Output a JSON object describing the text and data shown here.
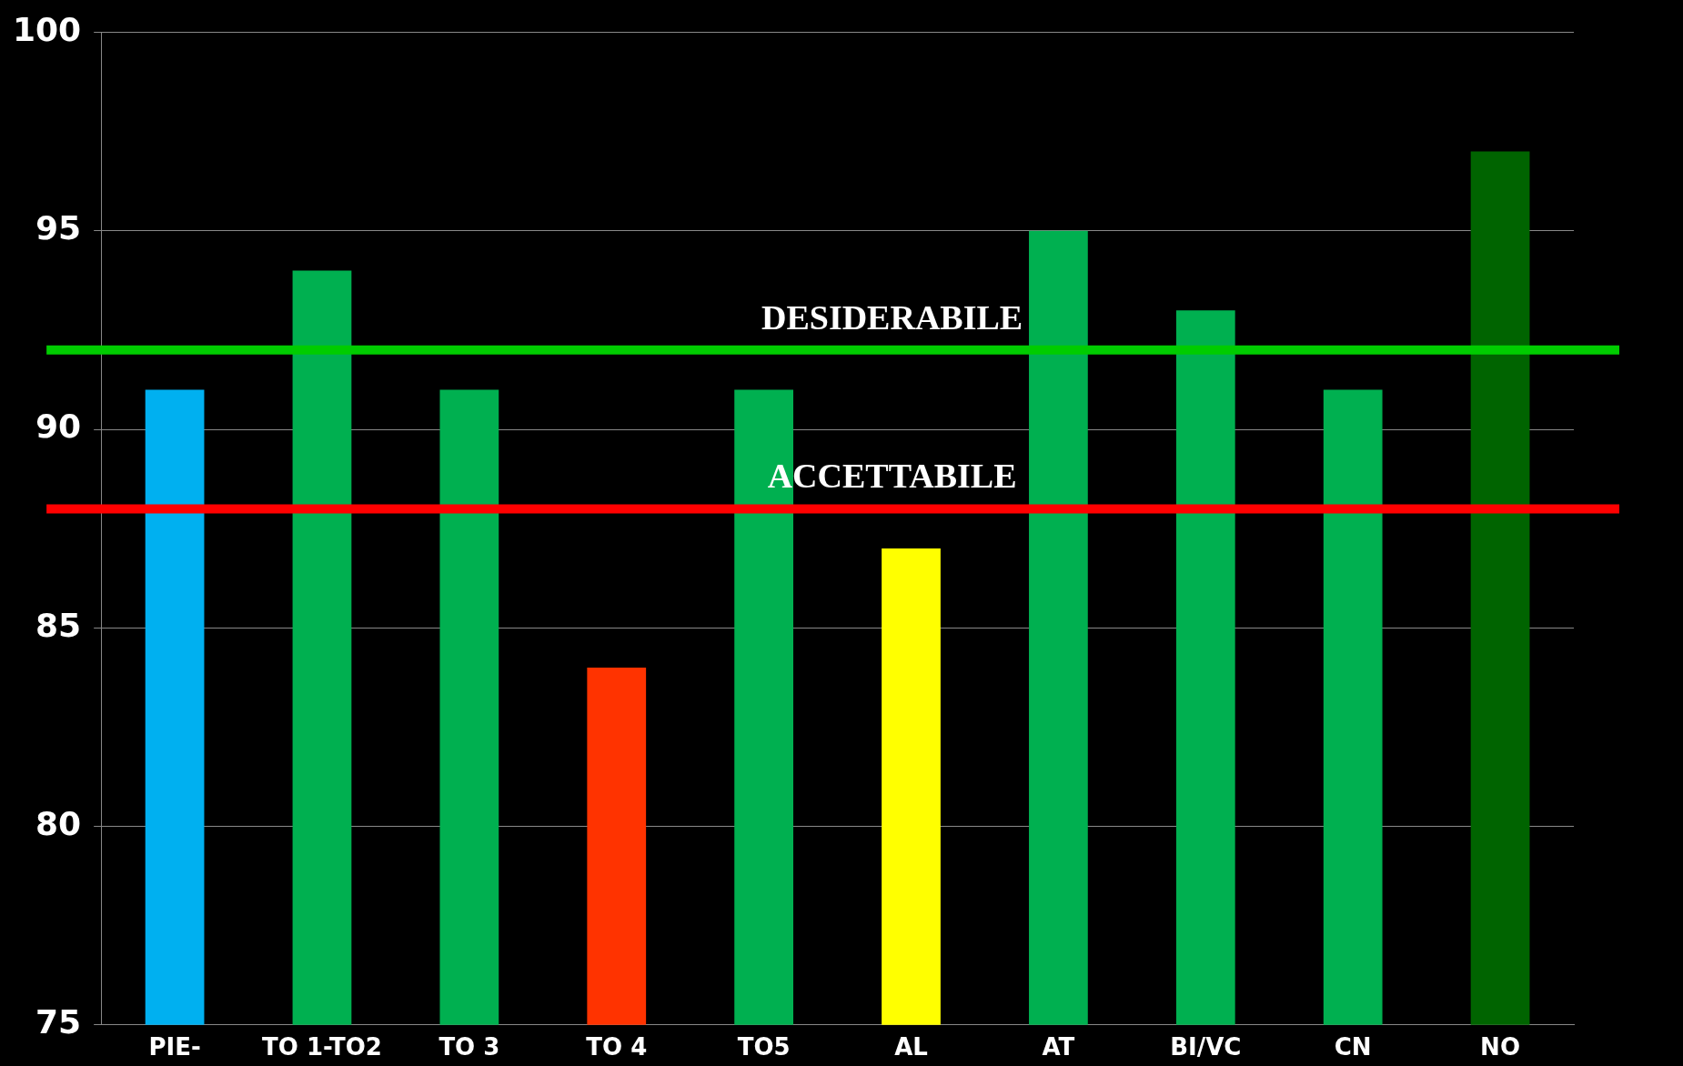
{
  "chart_data": {
    "type": "bar",
    "categories": [
      "PIE-",
      "TO 1-TO2",
      "TO 3",
      "TO 4",
      "TO5",
      "AL",
      "AT",
      "BI/VC",
      "CN",
      "NO"
    ],
    "values": [
      91,
      94,
      91,
      84,
      91,
      87,
      95,
      93,
      91,
      97
    ],
    "colors": [
      "#00b0f0",
      "#00b050",
      "#00b050",
      "#ff3300",
      "#00b050",
      "#ffff00",
      "#00b050",
      "#00b050",
      "#00b050",
      "#006400"
    ],
    "ylim": [
      75,
      100
    ],
    "yticks": [
      75,
      80,
      85,
      90,
      95,
      100
    ],
    "grid": "y",
    "legend": false,
    "ref_lines": [
      {
        "axis": "y",
        "value": 92,
        "label": "DESIDERABILE",
        "color": "#00cc00"
      },
      {
        "axis": "y",
        "value": 88,
        "label": "ACCETTABILE",
        "color": "#ff0000"
      }
    ]
  }
}
